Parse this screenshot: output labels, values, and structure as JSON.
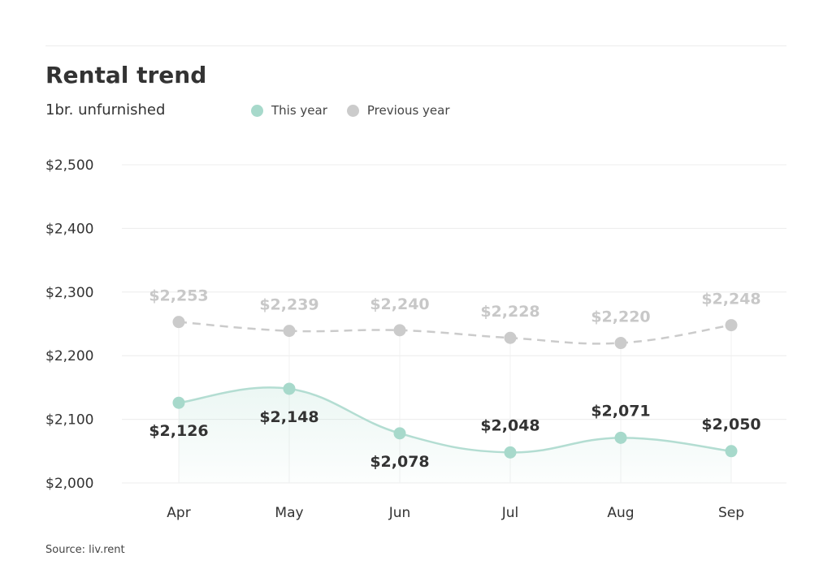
{
  "header": {
    "title": "Rental trend",
    "subtitle": "1br. unfurnished"
  },
  "legend": {
    "this_year": "This year",
    "previous_year": "Previous year"
  },
  "footer": {
    "source": "Source: liv.rent"
  },
  "colors": {
    "this_year": "#a7d9cb",
    "this_year_line": "#b3ddd2",
    "previous_year": "#cbcbcb",
    "grid": "#ececec"
  },
  "chart_data": {
    "type": "line",
    "title": "Rental trend",
    "subtitle": "1br. unfurnished",
    "categories": [
      "Apr",
      "May",
      "Jun",
      "Jul",
      "Aug",
      "Sep"
    ],
    "ylim": [
      2000,
      2500
    ],
    "yticks": [
      2000,
      2100,
      2200,
      2300,
      2400,
      2500
    ],
    "ytick_labels": [
      "$2,000",
      "$2,100",
      "$2,200",
      "$2,300",
      "$2,400",
      "$2,500"
    ],
    "grid": true,
    "legend_position": "top",
    "series": [
      {
        "name": "This year",
        "values": [
          2126,
          2148,
          2078,
          2048,
          2071,
          2050
        ],
        "labels": [
          "$2,126",
          "$2,148",
          "$2,078",
          "$2,048",
          "$2,071",
          "$2,050"
        ]
      },
      {
        "name": "Previous year",
        "values": [
          2253,
          2239,
          2240,
          2228,
          2220,
          2248
        ],
        "labels": [
          "$2,253",
          "$2,239",
          "$2,240",
          "$2,228",
          "$2,220",
          "$2,248"
        ]
      }
    ]
  }
}
